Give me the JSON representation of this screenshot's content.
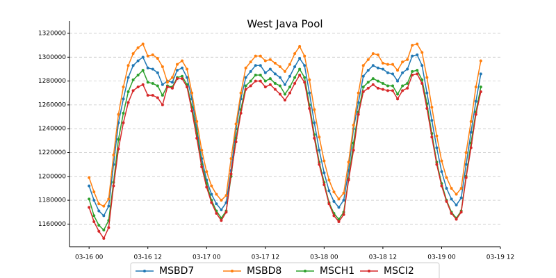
{
  "chart_data": {
    "type": "line",
    "title": "West Java Pool",
    "x": [
      "03-16 00",
      "03-16 01",
      "03-16 02",
      "03-16 03",
      "03-16 04",
      "03-16 05",
      "03-16 06",
      "03-16 07",
      "03-16 08",
      "03-16 09",
      "03-16 10",
      "03-16 11",
      "03-16 12",
      "03-16 13",
      "03-16 14",
      "03-16 15",
      "03-16 16",
      "03-16 17",
      "03-16 18",
      "03-16 19",
      "03-16 20",
      "03-16 21",
      "03-16 22",
      "03-16 23",
      "03-17 00",
      "03-17 01",
      "03-17 02",
      "03-17 03",
      "03-17 04",
      "03-17 05",
      "03-17 06",
      "03-17 07",
      "03-17 08",
      "03-17 09",
      "03-17 10",
      "03-17 11",
      "03-17 12",
      "03-17 13",
      "03-17 14",
      "03-17 15",
      "03-17 16",
      "03-17 17",
      "03-17 18",
      "03-17 19",
      "03-17 20",
      "03-17 21",
      "03-17 22",
      "03-17 23",
      "03-18 00",
      "03-18 01",
      "03-18 02",
      "03-18 03",
      "03-18 04",
      "03-18 05",
      "03-18 06",
      "03-18 07",
      "03-18 08",
      "03-18 09",
      "03-18 10",
      "03-18 11",
      "03-18 12",
      "03-18 13",
      "03-18 14",
      "03-18 15",
      "03-18 16",
      "03-18 17",
      "03-18 18",
      "03-18 19",
      "03-18 20",
      "03-18 21",
      "03-18 22",
      "03-18 23",
      "03-19 00",
      "03-19 01",
      "03-19 02",
      "03-19 03",
      "03-19 04",
      "03-19 05",
      "03-19 06",
      "03-19 07",
      "03-19 08"
    ],
    "series": [
      {
        "name": "MSBD7",
        "color": "#1f77b4",
        "values": [
          1192000,
          1180000,
          1171000,
          1167000,
          1175000,
          1210000,
          1245000,
          1265000,
          1283000,
          1293000,
          1297000,
          1300000,
          1291000,
          1290000,
          1287000,
          1277000,
          1280000,
          1279000,
          1289000,
          1291000,
          1283000,
          1265000,
          1240000,
          1215000,
          1197000,
          1185000,
          1177000,
          1172000,
          1178000,
          1205000,
          1240000,
          1265000,
          1283000,
          1288000,
          1293000,
          1293000,
          1287000,
          1290000,
          1286000,
          1283000,
          1277000,
          1284000,
          1292000,
          1299000,
          1293000,
          1270000,
          1245000,
          1222000,
          1203000,
          1188000,
          1179000,
          1174000,
          1180000,
          1205000,
          1240000,
          1262000,
          1284000,
          1289000,
          1293000,
          1291000,
          1290000,
          1287000,
          1286000,
          1280000,
          1287000,
          1290000,
          1301000,
          1302000,
          1293000,
          1270000,
          1247000,
          1224000,
          1204000,
          1190000,
          1181000,
          1176000,
          1182000,
          1210000,
          1237000,
          1263000,
          1286000
        ]
      },
      {
        "name": "MSBD8",
        "color": "#ff7f0e",
        "values": [
          1199000,
          1187000,
          1177000,
          1175000,
          1181000,
          1218000,
          1252000,
          1275000,
          1293000,
          1303000,
          1308000,
          1311000,
          1301000,
          1302000,
          1299000,
          1292000,
          1279000,
          1283000,
          1294000,
          1297000,
          1290000,
          1270000,
          1246000,
          1222000,
          1204000,
          1192000,
          1185000,
          1180000,
          1184000,
          1215000,
          1244000,
          1270000,
          1291000,
          1296000,
          1301000,
          1301000,
          1297000,
          1298000,
          1295000,
          1292000,
          1288000,
          1294000,
          1303000,
          1309000,
          1301000,
          1281000,
          1256000,
          1233000,
          1213000,
          1197000,
          1187000,
          1181000,
          1186000,
          1212000,
          1243000,
          1270000,
          1293000,
          1298000,
          1303000,
          1302000,
          1295000,
          1294000,
          1294000,
          1289000,
          1296000,
          1298000,
          1310000,
          1311000,
          1304000,
          1283000,
          1258000,
          1234000,
          1213000,
          1199000,
          1190000,
          1185000,
          1190000,
          1220000,
          1246000,
          1275000,
          1297000
        ]
      },
      {
        "name": "MSCH1",
        "color": "#2ca02c",
        "values": [
          1181000,
          1167000,
          1159000,
          1155000,
          1163000,
          1195000,
          1231000,
          1253000,
          1271000,
          1281000,
          1285000,
          1289000,
          1279000,
          1278000,
          1276000,
          1268000,
          1276000,
          1275000,
          1283000,
          1284000,
          1277000,
          1258000,
          1236000,
          1210000,
          1194000,
          1180000,
          1171000,
          1165000,
          1171000,
          1200000,
          1232000,
          1256000,
          1276000,
          1280000,
          1285000,
          1285000,
          1280000,
          1282000,
          1278000,
          1276000,
          1269000,
          1275000,
          1283000,
          1290000,
          1283000,
          1260000,
          1235000,
          1212000,
          1195000,
          1178000,
          1169000,
          1164000,
          1170000,
          1198000,
          1228000,
          1254000,
          1275000,
          1279000,
          1282000,
          1280000,
          1278000,
          1276000,
          1276000,
          1269000,
          1276000,
          1278000,
          1288000,
          1289000,
          1281000,
          1261000,
          1236000,
          1212000,
          1194000,
          1180000,
          1170000,
          1165000,
          1171000,
          1200000,
          1228000,
          1254000,
          1275000
        ]
      },
      {
        "name": "MSCI2",
        "color": "#d62728",
        "values": [
          1174000,
          1162000,
          1154000,
          1148000,
          1157000,
          1192000,
          1223000,
          1245000,
          1262000,
          1272000,
          1275000,
          1277000,
          1268000,
          1268000,
          1266000,
          1260000,
          1275000,
          1274000,
          1282000,
          1282000,
          1275000,
          1255000,
          1232000,
          1208000,
          1191000,
          1178000,
          1169000,
          1163000,
          1170000,
          1202000,
          1229000,
          1253000,
          1273000,
          1276000,
          1280000,
          1280000,
          1275000,
          1277000,
          1273000,
          1269000,
          1264000,
          1270000,
          1278000,
          1285000,
          1279000,
          1257000,
          1232000,
          1210000,
          1193000,
          1177000,
          1167000,
          1162000,
          1168000,
          1197000,
          1222000,
          1252000,
          1271000,
          1274000,
          1277000,
          1274000,
          1273000,
          1272000,
          1272000,
          1265000,
          1272000,
          1274000,
          1285000,
          1286000,
          1278000,
          1257000,
          1233000,
          1210000,
          1192000,
          1179000,
          1169000,
          1164000,
          1170000,
          1199000,
          1224000,
          1252000,
          1271000
        ]
      }
    ],
    "xlim": [
      "03-15 20",
      "03-19 12"
    ],
    "xticks": [
      "03-16 00",
      "03-16 12",
      "03-17 00",
      "03-17 12",
      "03-18 00",
      "03-18 12",
      "03-19 00",
      "03-19 12"
    ],
    "ylim": [
      1141000,
      1320000
    ],
    "yticks": [
      1160000,
      1180000,
      1200000,
      1220000,
      1240000,
      1260000,
      1280000,
      1300000,
      1320000
    ],
    "grid": true,
    "legend": "bottom"
  }
}
